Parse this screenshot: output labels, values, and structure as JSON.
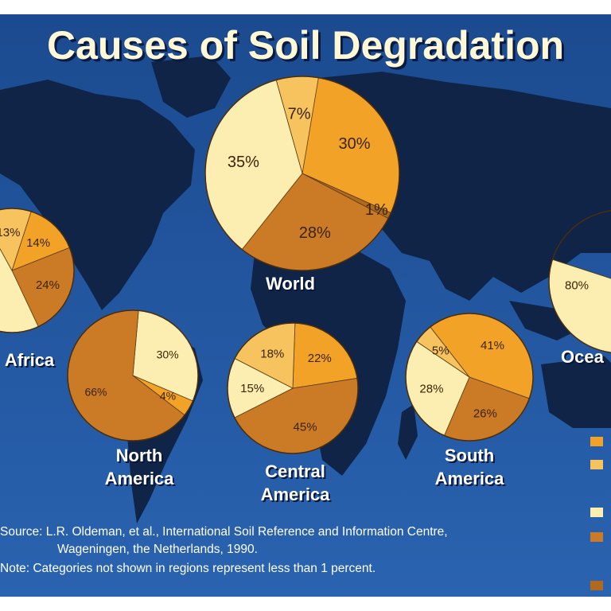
{
  "title": "Causes of Soil Degradation",
  "colors": {
    "ocean": "#1f4f95",
    "land": "#0f2446",
    "cat_a": "#f1a227",
    "cat_b": "#f6c35e",
    "cat_c": "#fbeeb0",
    "cat_d": "#cb7a25"
  },
  "regions": {
    "world": {
      "line1": "World",
      "line2": ""
    },
    "africa": {
      "line1": "Africa",
      "line2": ""
    },
    "north_america": {
      "line1": "North",
      "line2": "America"
    },
    "central_america": {
      "line1": "Central",
      "line2": "America"
    },
    "south_america": {
      "line1": "South",
      "line2": "America"
    },
    "oceania": {
      "line1": "Ocea",
      "line2": ""
    }
  },
  "footer": {
    "source_line1": "Source: L.R. Oldeman, et al., International Soil Reference and Information Centre,",
    "source_line2": "Wageningen, the Netherlands, 1990.",
    "note": "Note: Categories not shown in regions represent less than 1 percent."
  },
  "chart_data": [
    {
      "type": "pie",
      "region": "World",
      "slices": [
        {
          "category": "a",
          "value": 30,
          "label": "30%"
        },
        {
          "category": "e",
          "value": 1,
          "label": "1%"
        },
        {
          "category": "d",
          "value": 28,
          "label": "28%"
        },
        {
          "category": "c",
          "value": 35,
          "label": "35%"
        },
        {
          "category": "b",
          "value": 7,
          "label": "7%"
        }
      ]
    },
    {
      "type": "pie",
      "region": "Africa",
      "slices": [
        {
          "category": "a",
          "value": 14,
          "label": "14%"
        },
        {
          "category": "d",
          "value": 24,
          "label": "24%"
        },
        {
          "category": "c",
          "value": 49,
          "label": ""
        },
        {
          "category": "b",
          "value": 13,
          "label": "13%"
        }
      ]
    },
    {
      "type": "pie",
      "region": "North America",
      "slices": [
        {
          "category": "c",
          "value": 30,
          "label": "30%"
        },
        {
          "category": "a",
          "value": 4,
          "label": "4%"
        },
        {
          "category": "d",
          "value": 66,
          "label": "66%"
        }
      ]
    },
    {
      "type": "pie",
      "region": "Central America",
      "slices": [
        {
          "category": "a",
          "value": 22,
          "label": "22%"
        },
        {
          "category": "d",
          "value": 45,
          "label": "45%"
        },
        {
          "category": "c",
          "value": 15,
          "label": "15%"
        },
        {
          "category": "b",
          "value": 18,
          "label": "18%"
        }
      ]
    },
    {
      "type": "pie",
      "region": "South America",
      "slices": [
        {
          "category": "a",
          "value": 41,
          "label": "41%"
        },
        {
          "category": "d",
          "value": 26,
          "label": "26%"
        },
        {
          "category": "c",
          "value": 28,
          "label": "28%"
        },
        {
          "category": "b",
          "value": 5,
          "label": "5%"
        }
      ]
    },
    {
      "type": "pie",
      "region": "Oceania",
      "slices": [
        {
          "category": "c",
          "value": 80,
          "label": "80%"
        }
      ]
    }
  ]
}
